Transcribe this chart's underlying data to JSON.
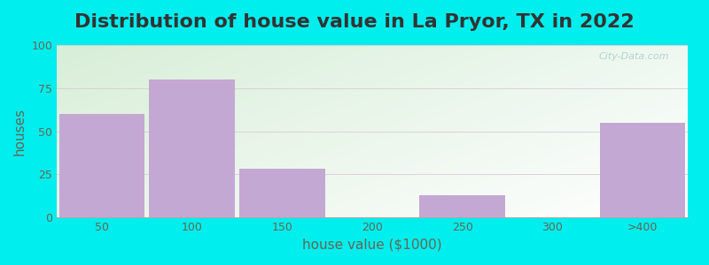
{
  "title": "Distribution of house value in La Pryor, TX in 2022",
  "xlabel": "house value ($1000)",
  "ylabel": "houses",
  "bar_labels": [
    "50",
    "100",
    "150",
    "200",
    "250",
    "300",
    ">400"
  ],
  "bar_heights": [
    60,
    80,
    28,
    0,
    13,
    0,
    55
  ],
  "bar_color": "#C4A8D4",
  "bar_edgecolor": "#C4A8D4",
  "ylim": [
    0,
    100
  ],
  "yticks": [
    0,
    25,
    50,
    75,
    100
  ],
  "outer_bg": "#00EEEE",
  "title_fontsize": 16,
  "axis_label_fontsize": 11,
  "tick_fontsize": 9,
  "watermark": "City-Data.com",
  "grid_color": "#e0e8e0",
  "text_color": "#333333",
  "label_color": "#666655"
}
